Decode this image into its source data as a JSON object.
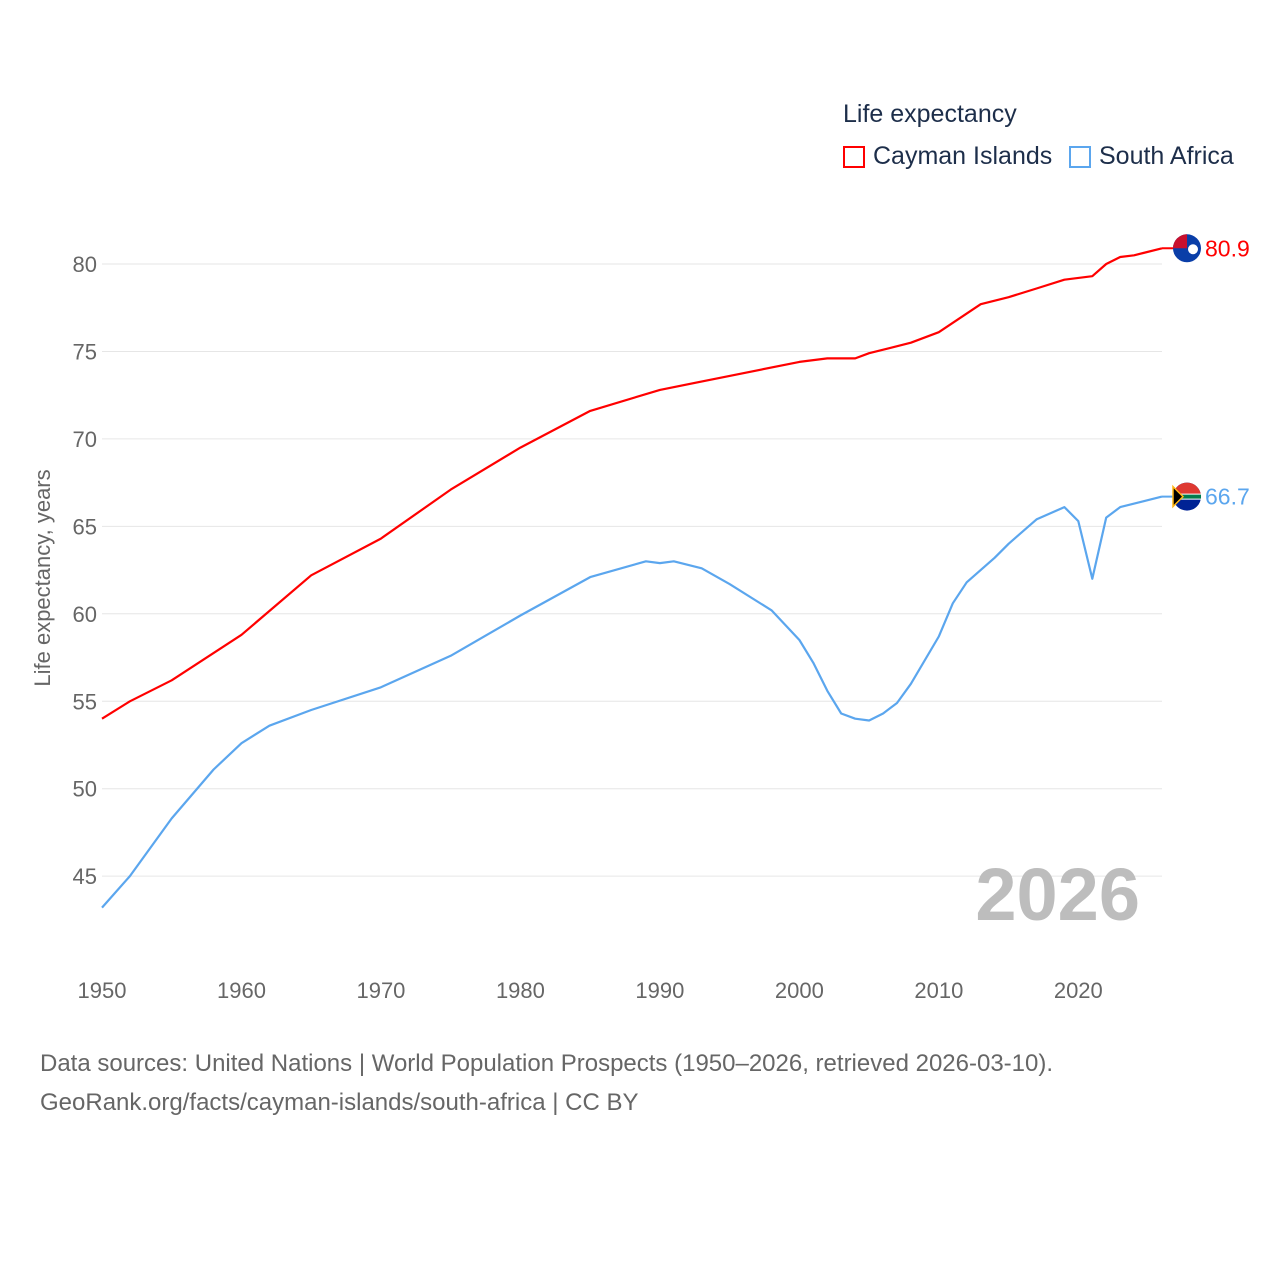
{
  "legend": {
    "title": "Life expectancy"
  },
  "source": {
    "line1": "Data sources: United Nations | World Population Prospects (1950–2026, retrieved 2026-03-10).",
    "line2": "GeoRank.org/facts/cayman-islands/south-africa | CC BY"
  },
  "chart_data": {
    "type": "line",
    "title": "Life expectancy",
    "xlabel": "",
    "ylabel": "Life expectancy, years",
    "xlim": [
      1950,
      2026
    ],
    "ylim": [
      42,
      83
    ],
    "xticks": [
      1950,
      1960,
      1970,
      1980,
      1990,
      2000,
      2010,
      2020
    ],
    "yticks": [
      45,
      50,
      55,
      60,
      65,
      70,
      75,
      80
    ],
    "grid": true,
    "legend_position": "top-right",
    "year_annotation": "2026",
    "series": [
      {
        "name": "Cayman Islands",
        "color": "#ff0000",
        "end_label": "80.9",
        "x": [
          1950,
          1952,
          1955,
          1960,
          1965,
          1970,
          1975,
          1980,
          1985,
          1990,
          1995,
          2000,
          2002,
          2004,
          2005,
          2008,
          2010,
          2013,
          2015,
          2017,
          2019,
          2021,
          2022,
          2023,
          2024,
          2026
        ],
        "y": [
          54.0,
          55.0,
          56.2,
          58.8,
          62.2,
          64.3,
          67.1,
          69.5,
          71.6,
          72.8,
          73.6,
          74.4,
          74.6,
          74.6,
          74.9,
          75.5,
          76.1,
          77.7,
          78.1,
          78.6,
          79.1,
          79.3,
          80.0,
          80.4,
          80.5,
          80.9
        ]
      },
      {
        "name": "South Africa",
        "color": "#5ba6ee",
        "end_label": "66.7",
        "x": [
          1950,
          1952,
          1955,
          1958,
          1960,
          1962,
          1965,
          1970,
          1975,
          1980,
          1985,
          1989,
          1990,
          1991,
          1993,
          1995,
          1998,
          2000,
          2001,
          2002,
          2003,
          2004,
          2005,
          2006,
          2007,
          2008,
          2010,
          2011,
          2012,
          2014,
          2015,
          2017,
          2019,
          2020,
          2021,
          2022,
          2023,
          2026
        ],
        "y": [
          43.2,
          45.0,
          48.3,
          51.1,
          52.6,
          53.6,
          54.5,
          55.8,
          57.6,
          59.9,
          62.1,
          63.0,
          62.9,
          63.0,
          62.6,
          61.7,
          60.2,
          58.5,
          57.2,
          55.6,
          54.3,
          54.0,
          53.9,
          54.3,
          54.9,
          56.0,
          58.7,
          60.6,
          61.8,
          63.2,
          64.0,
          65.4,
          66.1,
          65.3,
          62.0,
          65.5,
          66.1,
          66.7
        ]
      }
    ]
  }
}
